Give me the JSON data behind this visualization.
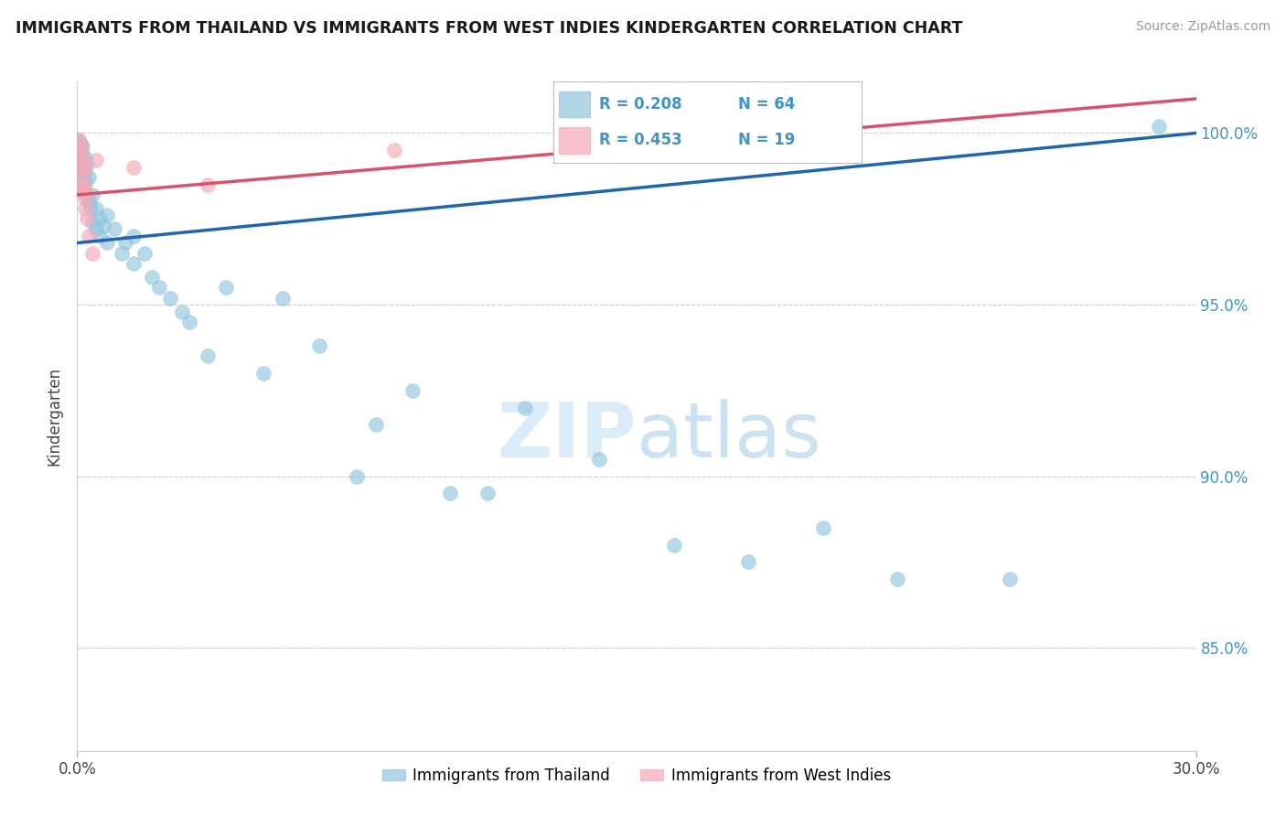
{
  "title": "IMMIGRANTS FROM THAILAND VS IMMIGRANTS FROM WEST INDIES KINDERGARTEN CORRELATION CHART",
  "source_text": "Source: ZipAtlas.com",
  "ylabel": "Kindergarten",
  "x_min": 0.0,
  "x_max": 30.0,
  "y_min": 82.0,
  "y_max": 101.5,
  "y_ticks": [
    85.0,
    90.0,
    95.0,
    100.0
  ],
  "y_tick_labels": [
    "85.0%",
    "90.0%",
    "95.0%",
    "100.0%"
  ],
  "legend_label_blue": "Immigrants from Thailand",
  "legend_label_pink": "Immigrants from West Indies",
  "legend_R_blue": "R = 0.208",
  "legend_N_blue": "N = 64",
  "legend_R_pink": "R = 0.453",
  "legend_N_pink": "N = 19",
  "blue_color": "#92c5de",
  "pink_color": "#f4a9b8",
  "trend_blue_color": "#2166ac",
  "trend_pink_color": "#d6536d",
  "legend_R_color": "#4393c3",
  "watermark_color": "#d6eaf8",
  "blue_trend_x": [
    0.0,
    30.0
  ],
  "blue_trend_y": [
    96.8,
    100.0
  ],
  "pink_trend_x": [
    0.0,
    30.0
  ],
  "pink_trend_y": [
    98.2,
    101.0
  ],
  "blue_x": [
    0.05,
    0.05,
    0.05,
    0.05,
    0.05,
    0.08,
    0.08,
    0.1,
    0.1,
    0.1,
    0.12,
    0.12,
    0.15,
    0.15,
    0.15,
    0.15,
    0.18,
    0.18,
    0.2,
    0.2,
    0.22,
    0.25,
    0.25,
    0.3,
    0.3,
    0.35,
    0.4,
    0.4,
    0.5,
    0.5,
    0.6,
    0.6,
    0.7,
    0.8,
    0.8,
    1.0,
    1.2,
    1.3,
    1.5,
    1.5,
    1.8,
    2.0,
    2.2,
    2.5,
    2.8,
    3.0,
    3.5,
    4.0,
    5.0,
    5.5,
    6.5,
    7.5,
    8.0,
    9.0,
    10.0,
    11.0,
    12.0,
    14.0,
    16.0,
    18.0,
    20.0,
    22.0,
    25.0,
    29.0
  ],
  "blue_y": [
    99.8,
    99.6,
    99.4,
    99.2,
    99.0,
    99.5,
    99.3,
    99.7,
    99.1,
    98.8,
    99.4,
    98.5,
    99.6,
    99.2,
    98.8,
    98.3,
    99.0,
    98.5,
    99.3,
    98.6,
    98.9,
    99.1,
    98.2,
    98.7,
    98.0,
    97.8,
    98.2,
    97.4,
    97.8,
    97.2,
    97.5,
    97.0,
    97.3,
    97.6,
    96.8,
    97.2,
    96.5,
    96.8,
    96.2,
    97.0,
    96.5,
    95.8,
    95.5,
    95.2,
    94.8,
    94.5,
    93.5,
    95.5,
    93.0,
    95.2,
    93.8,
    90.0,
    91.5,
    92.5,
    89.5,
    89.5,
    92.0,
    90.5,
    88.0,
    87.5,
    88.5,
    87.0,
    87.0,
    100.2
  ],
  "pink_x": [
    0.05,
    0.08,
    0.1,
    0.1,
    0.12,
    0.15,
    0.15,
    0.18,
    0.18,
    0.2,
    0.22,
    0.22,
    0.25,
    0.3,
    0.4,
    0.5,
    1.5,
    3.5,
    8.5
  ],
  "pink_y": [
    99.8,
    99.6,
    99.4,
    99.0,
    99.2,
    98.8,
    98.4,
    99.0,
    98.5,
    98.1,
    97.8,
    98.3,
    97.5,
    97.0,
    96.5,
    99.2,
    99.0,
    98.5,
    99.5
  ]
}
